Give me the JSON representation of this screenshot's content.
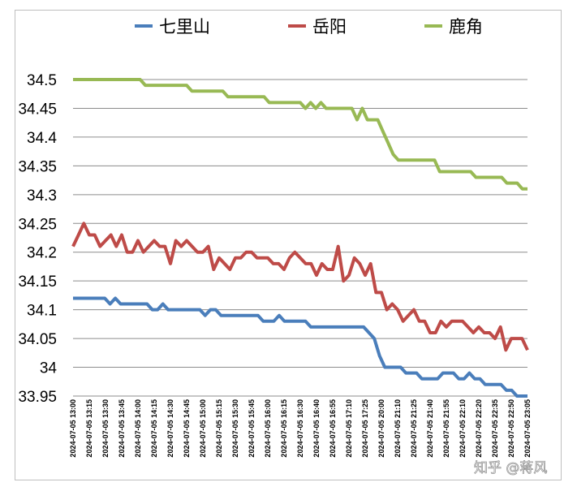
{
  "chart_data": {
    "type": "line",
    "title": "",
    "xlabel": "",
    "ylabel": "",
    "ylim": [
      33.95,
      34.5
    ],
    "yticks": [
      "33.95",
      "34",
      "34.05",
      "34.1",
      "34.15",
      "34.2",
      "34.25",
      "34.3",
      "34.35",
      "34.4",
      "34.45",
      "34.5"
    ],
    "grid": "horizontal",
    "legend": "top",
    "x_tick_labels": [
      "2024-07-05 13:00",
      "2024-07-05 13:15",
      "2024-07-05 13:30",
      "2024-07-05 13:45",
      "2024-07-05 14:00",
      "2024-07-05 14:15",
      "2024-07-05 14:30",
      "2024-07-05 14:45",
      "2024-07-05 15:00",
      "2024-07-05 15:15",
      "2024-07-05 15:30",
      "2024-07-05 15:45",
      "2024-07-05 16:00",
      "2024-07-05 16:15",
      "2024-07-05 16:30",
      "2024-07-05 16:40",
      "2024-07-05 16:55",
      "2024-07-05 17:10",
      "2024-07-05 17:25",
      "2024-07-05 20:00",
      "2024-07-05 21:10",
      "2024-07-05 21:25",
      "2024-07-05 21:40",
      "2024-07-05 21:55",
      "2024-07-05 22:10",
      "2024-07-05 22:20",
      "2024-07-05 22:35",
      "2024-07-05 22:50",
      "2024-07-05 23:05"
    ],
    "series": [
      {
        "name": "七里山",
        "color": "#4a7ebb",
        "values": [
          34.12,
          34.12,
          34.12,
          34.12,
          34.12,
          34.12,
          34.12,
          34.11,
          34.12,
          34.11,
          34.11,
          34.11,
          34.11,
          34.11,
          34.11,
          34.1,
          34.1,
          34.11,
          34.1,
          34.1,
          34.1,
          34.1,
          34.1,
          34.1,
          34.1,
          34.09,
          34.1,
          34.1,
          34.09,
          34.09,
          34.09,
          34.09,
          34.09,
          34.09,
          34.09,
          34.09,
          34.08,
          34.08,
          34.08,
          34.09,
          34.08,
          34.08,
          34.08,
          34.08,
          34.08,
          34.07,
          34.07,
          34.07,
          34.07,
          34.07,
          34.07,
          34.07,
          34.07,
          34.07,
          34.07,
          34.07,
          34.06,
          34.05,
          34.02,
          34.0,
          34.0,
          34.0,
          34.0,
          33.99,
          33.99,
          33.99,
          33.98,
          33.98,
          33.98,
          33.98,
          33.99,
          33.99,
          33.99,
          33.98,
          33.98,
          33.99,
          33.98,
          33.98,
          33.97,
          33.97,
          33.97,
          33.97,
          33.96,
          33.96,
          33.95,
          33.95,
          33.95
        ]
      },
      {
        "name": "岳阳",
        "color": "#be4b48",
        "values": [
          34.21,
          34.23,
          34.25,
          34.23,
          34.23,
          34.21,
          34.22,
          34.23,
          34.21,
          34.23,
          34.2,
          34.2,
          34.22,
          34.2,
          34.21,
          34.22,
          34.21,
          34.21,
          34.18,
          34.22,
          34.21,
          34.22,
          34.21,
          34.2,
          34.2,
          34.21,
          34.17,
          34.19,
          34.18,
          34.17,
          34.19,
          34.19,
          34.2,
          34.2,
          34.19,
          34.19,
          34.19,
          34.18,
          34.18,
          34.17,
          34.19,
          34.2,
          34.19,
          34.18,
          34.18,
          34.16,
          34.18,
          34.17,
          34.17,
          34.21,
          34.15,
          34.16,
          34.19,
          34.18,
          34.16,
          34.18,
          34.13,
          34.13,
          34.1,
          34.11,
          34.1,
          34.08,
          34.09,
          34.1,
          34.08,
          34.08,
          34.06,
          34.06,
          34.08,
          34.07,
          34.08,
          34.08,
          34.08,
          34.07,
          34.06,
          34.07,
          34.06,
          34.06,
          34.05,
          34.07,
          34.03,
          34.05,
          34.05,
          34.05,
          34.03
        ]
      },
      {
        "name": "鹿角",
        "color": "#98b954",
        "values": [
          34.5,
          34.5,
          34.5,
          34.5,
          34.5,
          34.5,
          34.5,
          34.5,
          34.5,
          34.5,
          34.5,
          34.5,
          34.5,
          34.5,
          34.49,
          34.49,
          34.49,
          34.49,
          34.49,
          34.49,
          34.49,
          34.49,
          34.49,
          34.48,
          34.48,
          34.48,
          34.48,
          34.48,
          34.48,
          34.48,
          34.47,
          34.47,
          34.47,
          34.47,
          34.47,
          34.47,
          34.47,
          34.47,
          34.46,
          34.46,
          34.46,
          34.46,
          34.46,
          34.46,
          34.46,
          34.45,
          34.46,
          34.45,
          34.46,
          34.45,
          34.45,
          34.45,
          34.45,
          34.45,
          34.45,
          34.43,
          34.45,
          34.43,
          34.43,
          34.43,
          34.41,
          34.39,
          34.37,
          34.36,
          34.36,
          34.36,
          34.36,
          34.36,
          34.36,
          34.36,
          34.36,
          34.34,
          34.34,
          34.34,
          34.34,
          34.34,
          34.34,
          34.34,
          34.33,
          34.33,
          34.33,
          34.33,
          34.33,
          34.33,
          34.32,
          34.32,
          34.32,
          34.31,
          34.31
        ]
      }
    ]
  },
  "watermark": "知乎 @蒋风"
}
